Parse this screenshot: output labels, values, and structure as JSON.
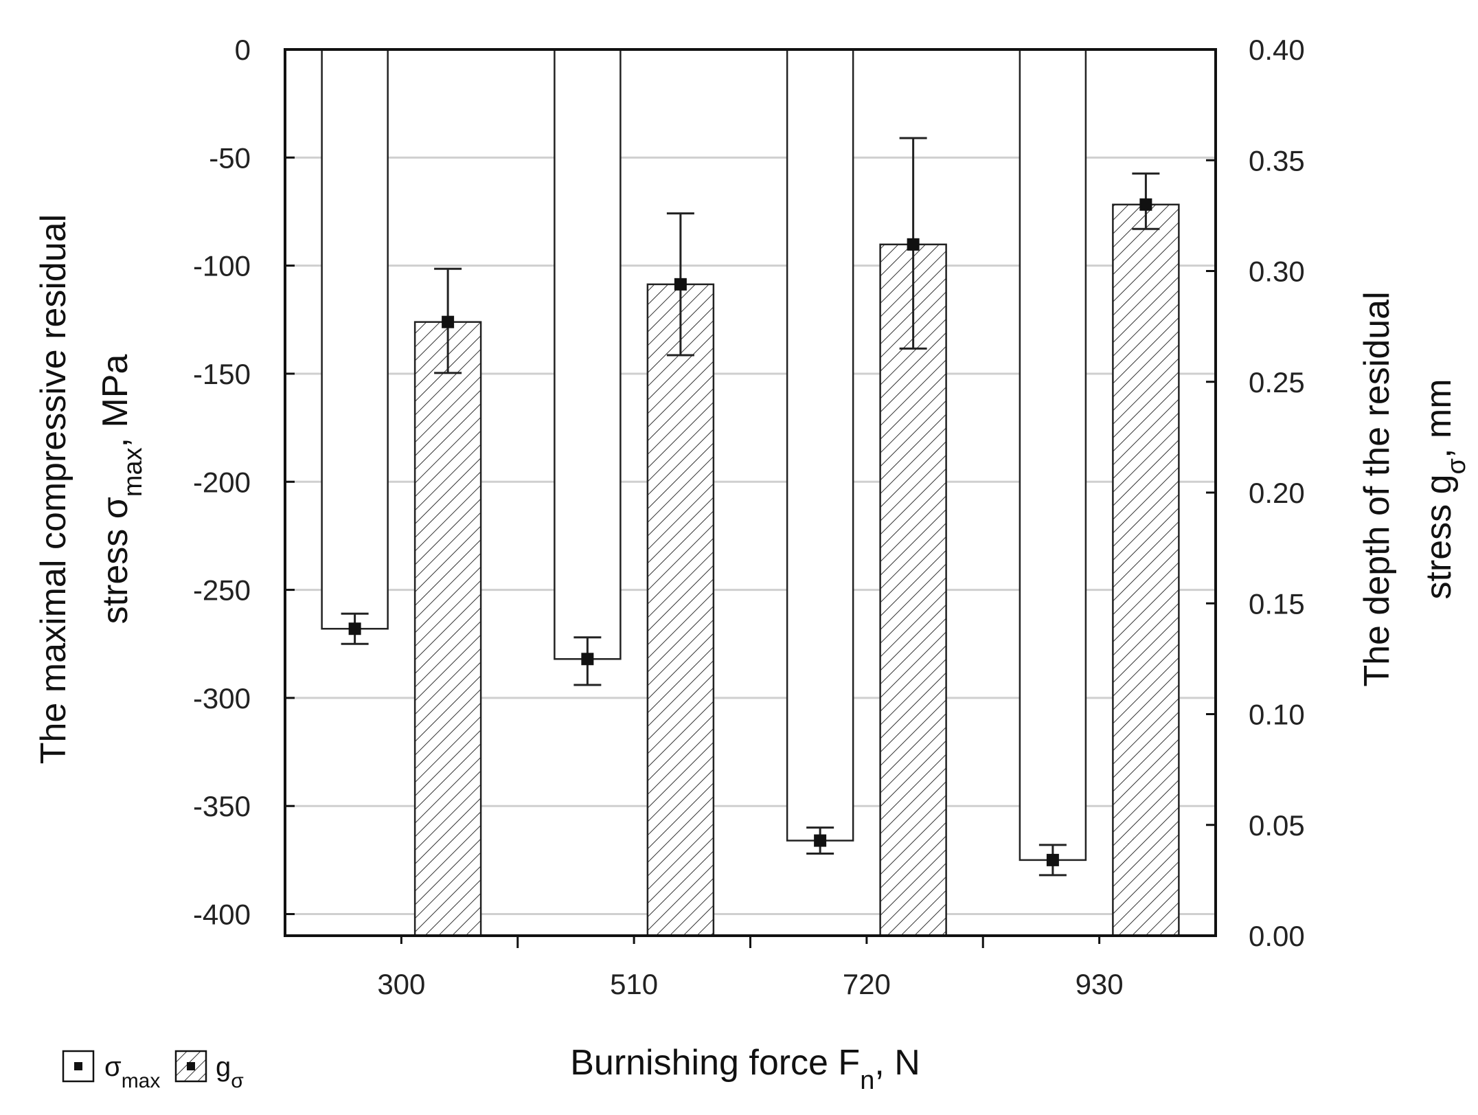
{
  "chart_data": {
    "type": "bar",
    "categories": [
      "300",
      "510",
      "720",
      "930"
    ],
    "xlabel": "Burnishing force F",
    "xlabel_sub": "n",
    "xlabel_unit": ", N",
    "ylabel_line1": "The maximal compressive residual",
    "ylabel_line2_pre": "stress σ",
    "ylabel_line2_sub": "max",
    "ylabel_line2_post": ", MPa",
    "y2label_line1": "The depth of the residual",
    "y2label_line2_pre": "stress g",
    "y2label_line2_sub": "σ",
    "y2label_line2_post": ", mm",
    "ylim": [
      -410,
      0
    ],
    "y2lim": [
      0,
      0.4
    ],
    "yticks": [
      0,
      -50,
      -100,
      -150,
      -200,
      -250,
      -300,
      -350,
      -400
    ],
    "y2ticks": [
      0.4,
      0.35,
      0.3,
      0.25,
      0.2,
      0.15,
      0.1,
      0.05,
      0.0
    ],
    "y2tick_labels": [
      "0.40",
      "0.35",
      "0.30",
      "0.25",
      "0.20",
      "0.15",
      "0.10",
      "0.05",
      "0.00"
    ],
    "grid": true,
    "legend_position": "bottom-left",
    "series": [
      {
        "name": "σmax",
        "legend_main": "σ",
        "legend_sub": "max",
        "axis": "left",
        "pattern": "open",
        "values": [
          -268,
          -282,
          -366,
          -375
        ],
        "err_low": [
          -275,
          -294,
          -372,
          -382
        ],
        "err_high": [
          -261,
          -272,
          -360,
          -368
        ]
      },
      {
        "name": "gσ",
        "legend_main": "g",
        "legend_sub": "σ",
        "axis": "right",
        "pattern": "hatched",
        "values": [
          0.277,
          0.294,
          0.312,
          0.33
        ],
        "err_low": [
          0.254,
          0.262,
          0.265,
          0.319
        ],
        "err_high": [
          0.301,
          0.326,
          0.36,
          0.344
        ]
      }
    ]
  }
}
